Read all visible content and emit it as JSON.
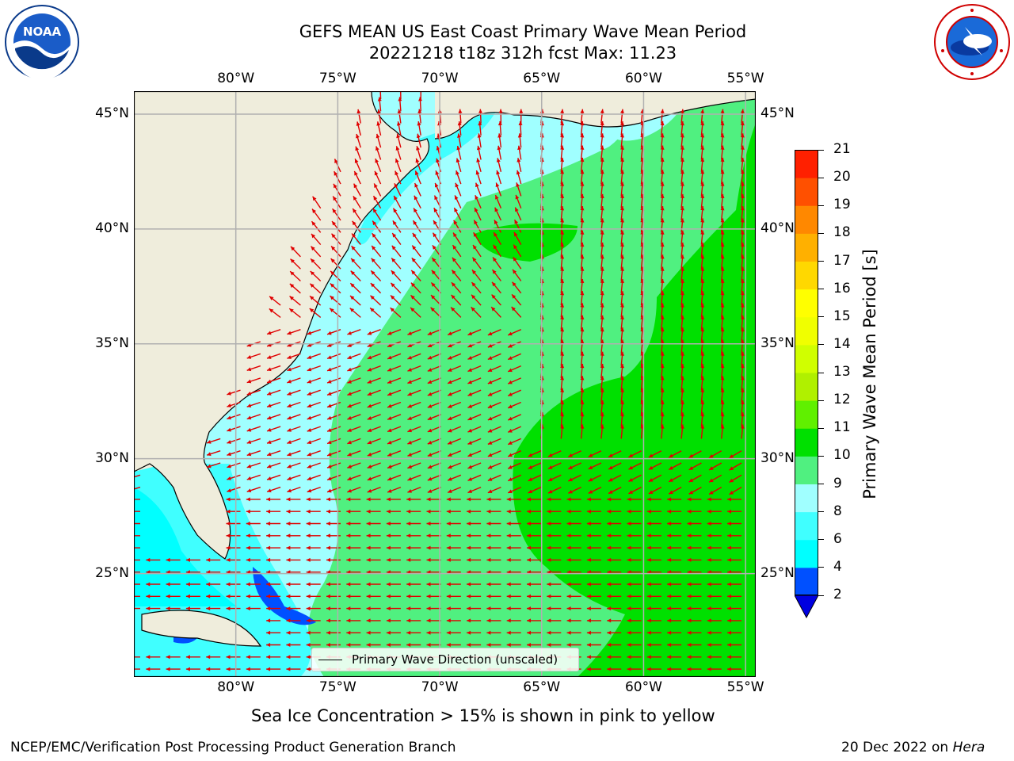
{
  "header": {
    "title_line1": "GEFS MEAN US East Coast Primary Wave Mean Period",
    "title_line2": "20221218 t18z 312h fcst   Max: 11.23"
  },
  "logos": {
    "left_icon": "noaa-logo-icon",
    "left_text": "NOAA",
    "right_icon": "nws-logo-icon"
  },
  "map": {
    "lon_labels": [
      "80°W",
      "75°W",
      "70°W",
      "65°W",
      "60°W",
      "55°W"
    ],
    "lon_values": [
      -80,
      -75,
      -70,
      -65,
      -60,
      -55
    ],
    "lat_labels": [
      "45°N",
      "40°N",
      "35°N",
      "30°N",
      "25°N"
    ],
    "lat_values": [
      45,
      40,
      35,
      30,
      25
    ],
    "extent": {
      "lon_min": -85,
      "lon_max": -54.5,
      "lat_min": 20.5,
      "lat_max": 46
    },
    "land_color": "#efeddc",
    "arrow_color": "#e00000",
    "legend_label": "Primary Wave Direction (unscaled)"
  },
  "colorbar": {
    "label": "Primary Wave Mean Period [s]",
    "ticks": [
      "2",
      "4",
      "6",
      "8",
      "9",
      "10",
      "11",
      "12",
      "13",
      "14",
      "15",
      "16",
      "17",
      "18",
      "19",
      "20",
      "21"
    ],
    "colors": [
      "#0050ff",
      "#00ffff",
      "#40ffff",
      "#a0ffff",
      "#50f080",
      "#00e000",
      "#60f000",
      "#b0f000",
      "#d0ff00",
      "#f0ff00",
      "#ffff00",
      "#ffd800",
      "#ffb000",
      "#ff8800",
      "#ff5000",
      "#ff2000"
    ],
    "extend_color": "#0000e0"
  },
  "footer": {
    "sea_ice_note": "Sea Ice Concentration > 15% is shown in pink to yellow",
    "credit": "NCEP/EMC/Verification Post Processing Product Generation Branch",
    "date": "20 Dec 2022 on ",
    "machine": "Hera"
  }
}
